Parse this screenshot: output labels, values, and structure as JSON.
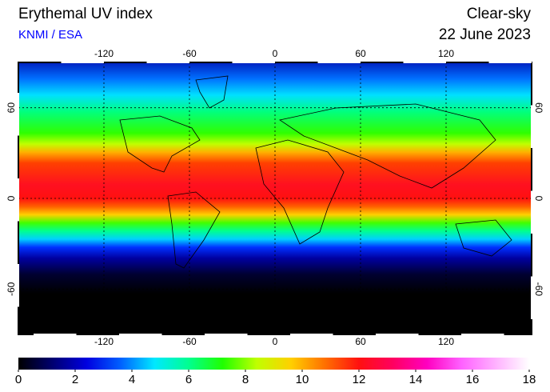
{
  "title": "Erythemal UV index",
  "source": "KNMI / ESA",
  "condition": "Clear-sky",
  "date": "22 June 2023",
  "map": {
    "xlim": [
      -180,
      180
    ],
    "ylim": [
      -90,
      90
    ],
    "xticks": [
      -120,
      -60,
      0,
      60,
      120
    ],
    "yticks": [
      -60,
      0,
      60
    ],
    "grid": true
  },
  "colorbar": {
    "lim": [
      0,
      18
    ],
    "ticks": [
      0,
      2,
      4,
      6,
      8,
      10,
      12,
      14,
      16,
      18
    ],
    "colors": [
      "#000000",
      "#000070",
      "#0000e0",
      "#0060ff",
      "#00e8ff",
      "#00ff90",
      "#20ff00",
      "#c0ff00",
      "#ffd000",
      "#ff7000",
      "#ff1010",
      "#ff0060",
      "#ff00c0",
      "#ff60ff",
      "#ffb0ff",
      "#ffffff"
    ]
  }
}
